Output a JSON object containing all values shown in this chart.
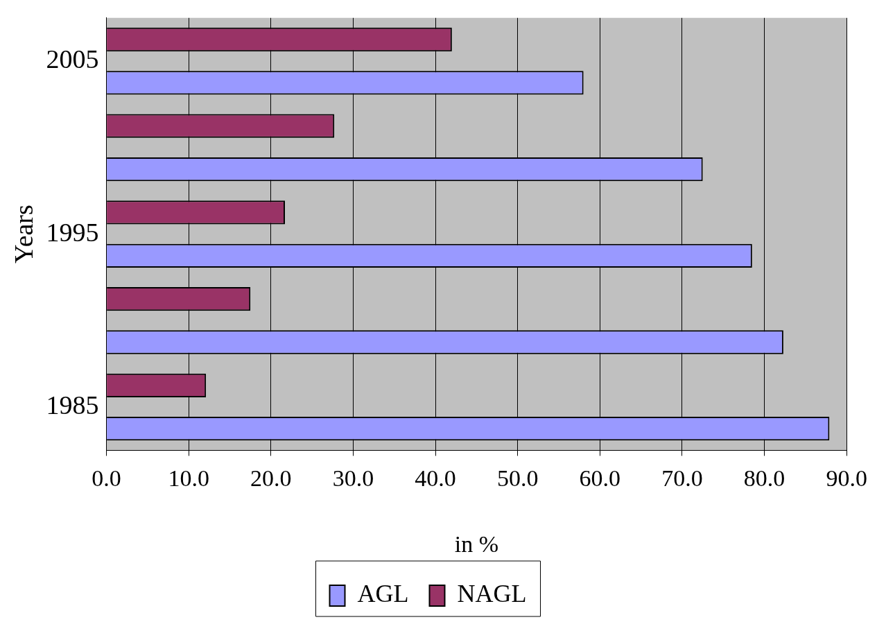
{
  "chart_data": {
    "type": "bar",
    "orientation": "horizontal",
    "xlabel": "in %",
    "ylabel": "Years",
    "categories": [
      "2005",
      null,
      "1995",
      null,
      "1985"
    ],
    "series": [
      {
        "name": "AGL",
        "color": "#9999ff",
        "values": [
          58.0,
          72.5,
          78.5,
          82.3,
          87.9
        ]
      },
      {
        "name": "NAGL",
        "color": "#993366",
        "values": [
          42.0,
          27.7,
          21.7,
          17.5,
          12.1
        ]
      }
    ],
    "xlim": [
      0,
      90
    ],
    "xticks": [
      {
        "value": 0,
        "label": "0.0"
      },
      {
        "value": 10,
        "label": "10.0"
      },
      {
        "value": 20,
        "label": "20.0"
      },
      {
        "value": 30,
        "label": "30.0"
      },
      {
        "value": 40,
        "label": "40.0"
      },
      {
        "value": 50,
        "label": "50.0"
      },
      {
        "value": 60,
        "label": "60.0"
      },
      {
        "value": 70,
        "label": "70.0"
      },
      {
        "value": 80,
        "label": "80.0"
      },
      {
        "value": 90,
        "label": "90.0"
      }
    ],
    "grid": "x",
    "legend": "bottom"
  }
}
